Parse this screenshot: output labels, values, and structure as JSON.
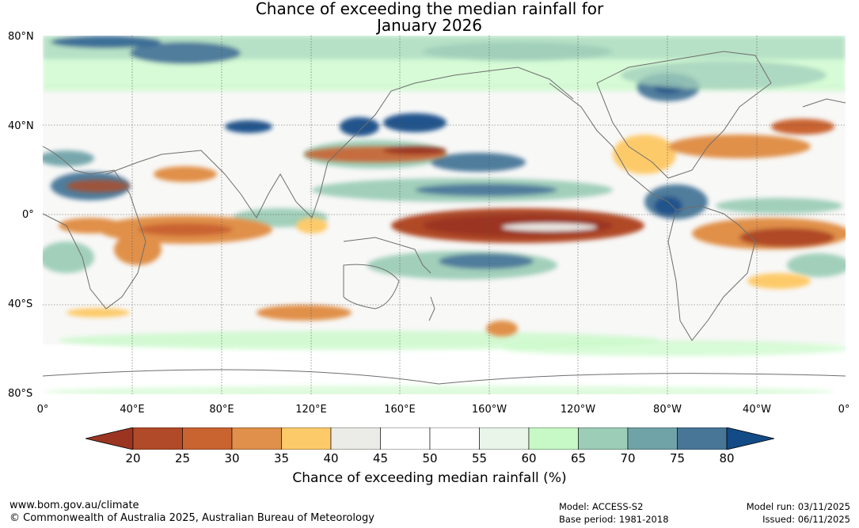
{
  "title_line1": "Chance of exceeding the median rainfall for",
  "title_line2": "January 2026",
  "lat_labels": [
    "80°N",
    "40°N",
    "0°",
    "40°S",
    "80°S"
  ],
  "lon_labels": [
    "0°",
    "40°E",
    "80°E",
    "120°E",
    "160°E",
    "160°W",
    "120°W",
    "80°W",
    "40°W",
    "0°"
  ],
  "colorbar": {
    "ticks": [
      "20",
      "25",
      "30",
      "35",
      "40",
      "45",
      "50",
      "55",
      "60",
      "65",
      "70",
      "75",
      "80"
    ],
    "colors": [
      "#9b3522",
      "#b04a28",
      "#c96330",
      "#e0904a",
      "#fdca6a",
      "#ebebe8",
      "#ffffff",
      "#ffffff",
      "#e9f5e8",
      "#c6f9c5",
      "#9ccdb7",
      "#70a3a8",
      "#477697",
      "#134b86"
    ],
    "title": "Chance of exceeding median rainfall (%)"
  },
  "footer": {
    "website": "www.bom.gov.au/climate",
    "copyright": "© Commonwealth of Australia 2025, Australian Bureau of Meteorology",
    "model": "Model: ACCESS-S2",
    "base_period": "Base period: 1981-2018",
    "model_run": "Model run: 03/11/2025",
    "issued": "Issued: 06/11/2025"
  }
}
